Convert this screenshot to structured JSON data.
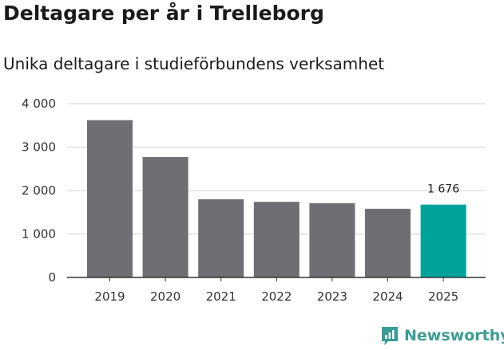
{
  "chart_data": {
    "type": "bar",
    "title": "Deltagare per år i Trelleborg",
    "subtitle": "Unika deltagare i studieförbundens verksamhet",
    "categories": [
      "2019",
      "2020",
      "2021",
      "2022",
      "2023",
      "2024",
      "2025"
    ],
    "values": [
      3620,
      2770,
      1800,
      1740,
      1710,
      1580,
      1676
    ],
    "ylim": [
      0,
      4000
    ],
    "yticks": [
      0,
      1000,
      2000,
      3000,
      4000
    ],
    "ytick_labels": [
      "0",
      "1 000",
      "2 000",
      "3 000",
      "4 000"
    ],
    "grid": true,
    "highlight_index": 6,
    "highlight_label": "1 676",
    "colors": {
      "bar": "#6f6e73",
      "highlight": "#00a39a",
      "grid": "#d9d9d9",
      "axis": "#333333"
    }
  },
  "brand": {
    "name": "Newsworthy",
    "color": "#3b9c95",
    "icon": "newsworthy-logo-icon"
  }
}
